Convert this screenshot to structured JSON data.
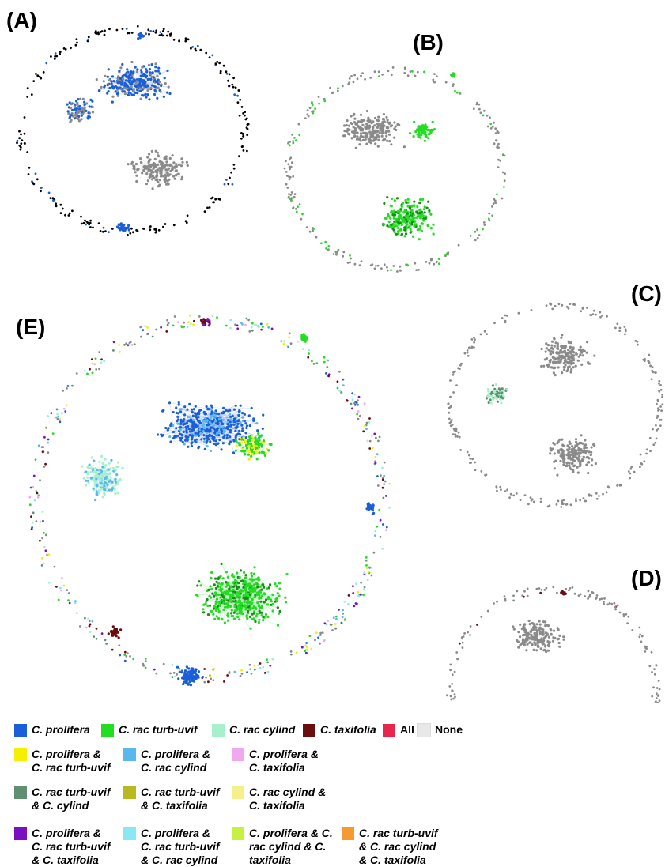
{
  "panels": {
    "a": "(A)",
    "b": "(B)",
    "c": "(C)",
    "d": "(D)",
    "e": "(E)"
  },
  "colors": {
    "prolifera": "#1a5fd8",
    "turb_uvif": "#22dd22",
    "cylind": "#a8f0cc",
    "taxifolia": "#6b0d0d",
    "all": "#e8254a",
    "none": "#e8e8e8",
    "pro_turb": "#f5f000",
    "pro_cyl": "#5ab8ee",
    "pro_tax": "#f0a8f0",
    "turb_cyl": "#5f9070",
    "turb_tax": "#b8b820",
    "cyl_tax": "#f5f08a",
    "pro_turb_tax": "#7a10c0",
    "pro_turb_cyl": "#8ae8f5",
    "pro_cyl_tax": "#c8f040",
    "turb_cyl_tax": "#f59a30",
    "node_gray": "#8a8a8a",
    "edge_gray": "#d0d0d0"
  },
  "legend": {
    "prolifera": "C. prolifera",
    "turb_uvif": "C. rac turb-uvif",
    "cylind": "C. rac cylind",
    "taxifolia": "C. taxifolia",
    "all": "All",
    "none": "None",
    "pro_turb": "C. prolifera &\nC. rac turb-uvif",
    "pro_cyl": "C. prolifera &\nC. rac cylind",
    "pro_tax": "C. prolifera &\nC. taxifolia",
    "turb_cyl": "C. rac turb-uvif\n& C. cylind",
    "turb_tax": "C. rac turb-uvif\n& C. taxifolia",
    "cyl_tax": "C. rac cylind &\nC. taxifolia",
    "pro_turb_tax": "C. prolifera &\nC. rac turb-uvif\n& C. taxifolia",
    "pro_turb_cyl": "C. prolifera &\nC. rac turb-uvif\n& C. rac cylind",
    "pro_cyl_tax": "C. prolifera & C.\nrac cylind & C.\ntaxifolia",
    "turb_cyl_tax": "C. rac turb-uvif\n& C. rac cylind\n& C. taxifolia"
  }
}
